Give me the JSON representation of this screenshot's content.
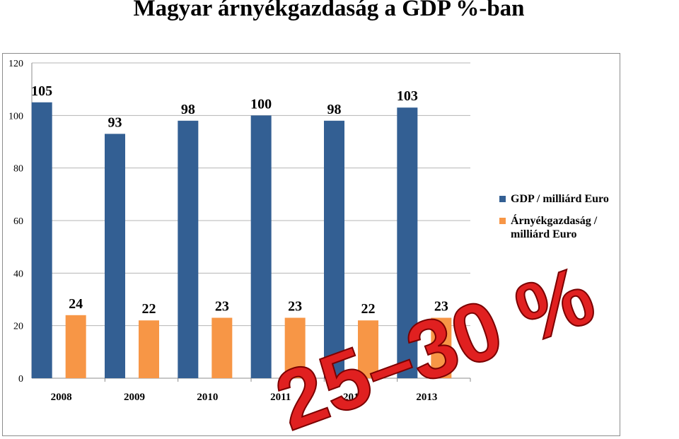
{
  "title": "Magyar árnyékgazdaság a GDP %-ban",
  "overlay_text": "25–30 %",
  "colors": {
    "gdp": "#335f93",
    "shadow": "#f79646",
    "overlay": "#e02020"
  },
  "chart_data": {
    "type": "bar",
    "categories": [
      "2008",
      "2009",
      "2010",
      "2011",
      "2012",
      "2013"
    ],
    "series": [
      {
        "name": "GDP / milliárd Euro",
        "values": [
          105,
          93,
          98,
          100,
          98,
          103
        ]
      },
      {
        "name": "Árnyékgazdaság / milliárd Euro",
        "values": [
          24,
          22,
          23,
          23,
          22,
          23
        ]
      }
    ],
    "y_ticks": [
      0,
      20,
      40,
      60,
      80,
      100,
      120
    ],
    "ylim": [
      0,
      120
    ],
    "grid": true,
    "legend": "right",
    "title": "Magyar árnyékgazdaság a GDP %-ban",
    "xlabel": "",
    "ylabel": ""
  }
}
